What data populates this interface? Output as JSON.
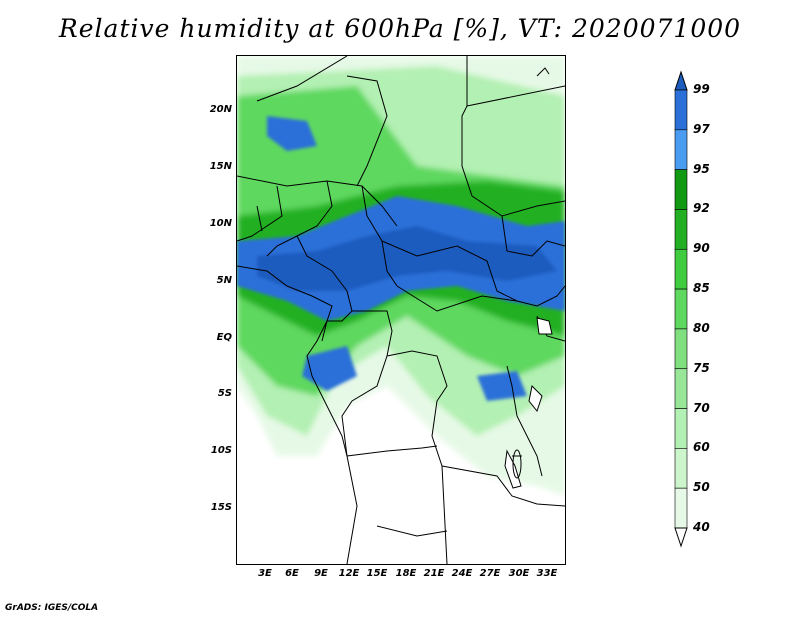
{
  "title": "Relative humidity at 600hPa [%], VT: 2020071000",
  "credit": "GrADS: IGES/COLA",
  "lat_ticks": [
    "20N",
    "15N",
    "10N",
    "5N",
    "EQ",
    "5S",
    "10S",
    "15S"
  ],
  "lon_ticks": [
    "3E",
    "6E",
    "9E",
    "12E",
    "15E",
    "18E",
    "21E",
    "24E",
    "27E",
    "30E",
    "33E"
  ],
  "colorbar": {
    "levels": [
      "40",
      "50",
      "60",
      "70",
      "75",
      "80",
      "85",
      "90",
      "92",
      "95",
      "97",
      "99"
    ],
    "colors": [
      "#ffffff",
      "#e6f9e6",
      "#ccf5cc",
      "#b3f0b3",
      "#99e699",
      "#80e080",
      "#5fd85f",
      "#3fcc3f",
      "#22b022",
      "#119a11",
      "#4a9cf0",
      "#2b6fd8",
      "#1c5cbf"
    ]
  },
  "map": {
    "region": "Central Africa",
    "lon_range": [
      0,
      35
    ],
    "lat_range": [
      -20,
      24
    ]
  }
}
